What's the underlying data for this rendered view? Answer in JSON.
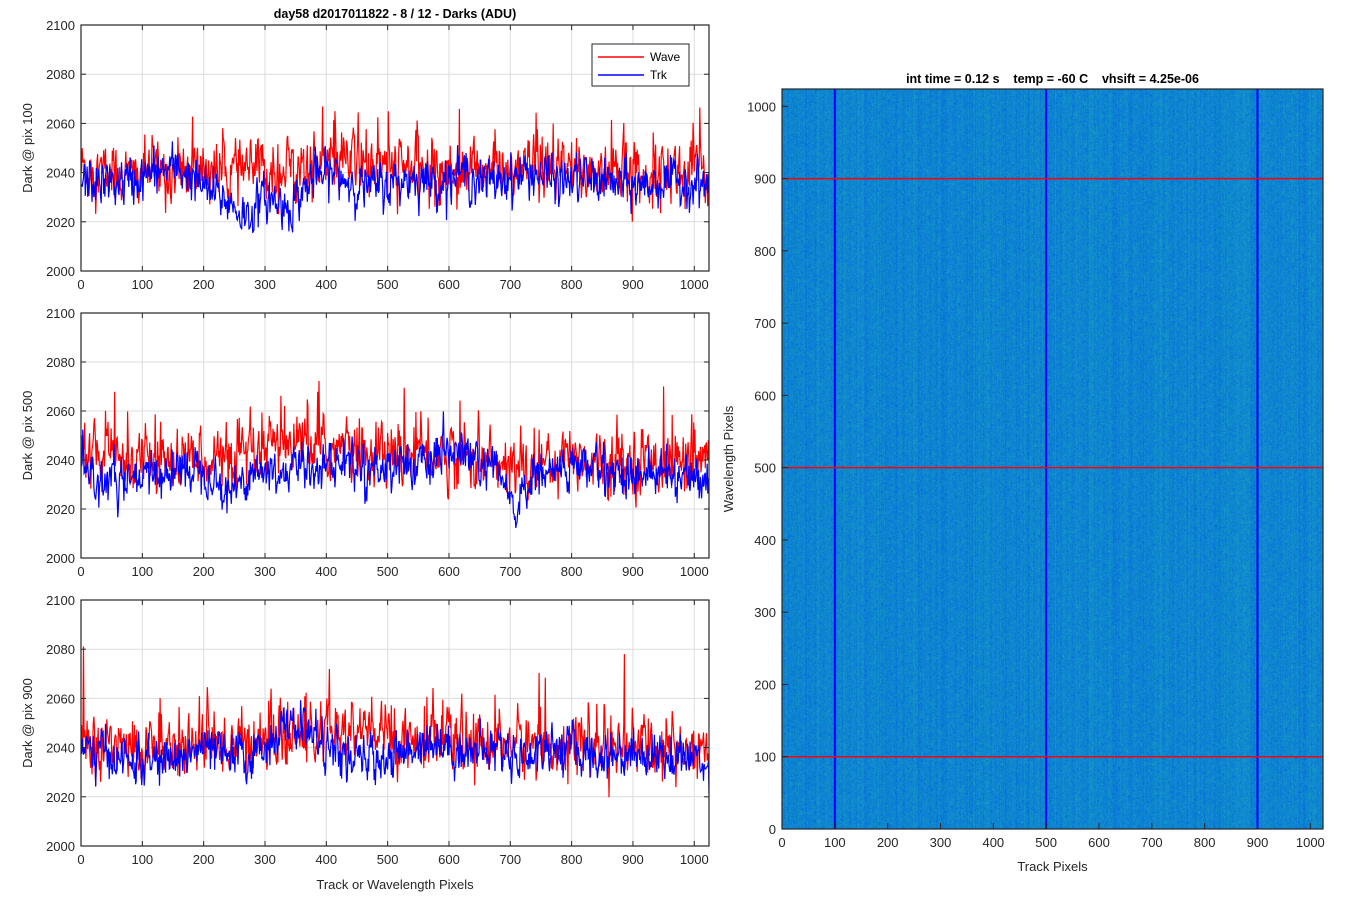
{
  "colors": {
    "wave": "#ff0000",
    "trk": "#0000ff",
    "grid": "#dcdcdc",
    "axis": "#262626"
  },
  "chart_data": [
    {
      "type": "line",
      "title": "day58 d2017011822 - 8 / 12 - Darks (ADU)",
      "ylabel": "Dark @ pix 100",
      "xlabel": "",
      "xlim": [
        0,
        1024
      ],
      "ylim": [
        2000,
        2100
      ],
      "xticks": [
        0,
        100,
        200,
        300,
        400,
        500,
        600,
        700,
        800,
        900,
        1000
      ],
      "yticks": [
        2000,
        2020,
        2040,
        2060,
        2080,
        2100
      ],
      "grid": true,
      "legend": "top-right",
      "series": [
        {
          "name": "Wave",
          "color": "#ff0000",
          "x": [
            0,
            40,
            80,
            120,
            160,
            200,
            240,
            270,
            300,
            340,
            380,
            410,
            440,
            470,
            500,
            540,
            580,
            620,
            660,
            700,
            740,
            780,
            820,
            860,
            900,
            940,
            980,
            1024
          ],
          "values": [
            2042,
            2040,
            2038,
            2041,
            2039,
            2042,
            2040,
            2041,
            2041,
            2042,
            2043,
            2044,
            2045,
            2043,
            2042,
            2042,
            2041,
            2041,
            2042,
            2040,
            2041,
            2041,
            2040,
            2041,
            2040,
            2041,
            2040,
            2040
          ]
        },
        {
          "name": "Trk",
          "color": "#0000ff",
          "x": [
            0,
            40,
            80,
            120,
            160,
            200,
            240,
            270,
            300,
            340,
            380,
            410,
            440,
            470,
            500,
            540,
            580,
            620,
            660,
            700,
            740,
            780,
            820,
            860,
            900,
            940,
            980,
            1024
          ],
          "values": [
            2036,
            2036,
            2036,
            2040,
            2042,
            2034,
            2028,
            2022,
            2030,
            2026,
            2038,
            2040,
            2036,
            2034,
            2035,
            2038,
            2036,
            2040,
            2036,
            2038,
            2040,
            2036,
            2038,
            2036,
            2034,
            2036,
            2036,
            2035
          ]
        }
      ]
    },
    {
      "type": "line",
      "title": "",
      "ylabel": "Dark @ pix 500",
      "xlabel": "",
      "xlim": [
        0,
        1024
      ],
      "ylim": [
        2000,
        2100
      ],
      "xticks": [
        0,
        100,
        200,
        300,
        400,
        500,
        600,
        700,
        800,
        900,
        1000
      ],
      "yticks": [
        2000,
        2020,
        2040,
        2060,
        2080,
        2100
      ],
      "grid": true,
      "series": [
        {
          "name": "Wave",
          "color": "#ff0000",
          "x": [
            0,
            40,
            80,
            120,
            160,
            200,
            240,
            280,
            320,
            360,
            400,
            440,
            480,
            520,
            560,
            600,
            640,
            680,
            720,
            760,
            800,
            840,
            880,
            920,
            960,
            1000,
            1024
          ],
          "values": [
            2040,
            2042,
            2041,
            2040,
            2040,
            2042,
            2040,
            2040,
            2046,
            2046,
            2045,
            2044,
            2042,
            2042,
            2043,
            2042,
            2041,
            2038,
            2036,
            2040,
            2042,
            2040,
            2040,
            2040,
            2040,
            2040,
            2040
          ]
        },
        {
          "name": "Trk",
          "color": "#0000ff",
          "x": [
            0,
            40,
            80,
            120,
            160,
            200,
            240,
            280,
            320,
            360,
            400,
            440,
            480,
            520,
            560,
            600,
            640,
            680,
            710,
            740,
            780,
            820,
            860,
            900,
            940,
            980,
            1024
          ],
          "values": [
            2034,
            2032,
            2030,
            2034,
            2036,
            2038,
            2026,
            2036,
            2034,
            2038,
            2038,
            2040,
            2036,
            2040,
            2036,
            2044,
            2040,
            2034,
            2020,
            2034,
            2036,
            2038,
            2036,
            2034,
            2034,
            2034,
            2032
          ]
        }
      ]
    },
    {
      "type": "line",
      "title": "",
      "ylabel": "Dark @ pix 900",
      "xlabel": "Track or Wavelength Pixels",
      "xlim": [
        0,
        1024
      ],
      "ylim": [
        2000,
        2100
      ],
      "xticks": [
        0,
        100,
        200,
        300,
        400,
        500,
        600,
        700,
        800,
        900,
        1000
      ],
      "yticks": [
        2000,
        2020,
        2040,
        2060,
        2080,
        2100
      ],
      "grid": true,
      "series": [
        {
          "name": "Wave",
          "color": "#ff0000",
          "x": [
            0,
            40,
            80,
            120,
            160,
            200,
            240,
            280,
            320,
            360,
            400,
            440,
            480,
            520,
            560,
            600,
            640,
            680,
            720,
            760,
            800,
            840,
            880,
            920,
            960,
            1000,
            1024
          ],
          "values": [
            2042,
            2040,
            2040,
            2040,
            2042,
            2040,
            2042,
            2042,
            2044,
            2044,
            2046,
            2046,
            2046,
            2044,
            2043,
            2042,
            2042,
            2042,
            2042,
            2040,
            2042,
            2040,
            2040,
            2040,
            2040,
            2040,
            2040
          ]
        },
        {
          "name": "Trk",
          "color": "#0000ff",
          "x": [
            0,
            40,
            80,
            120,
            160,
            200,
            240,
            280,
            320,
            360,
            400,
            440,
            480,
            520,
            560,
            600,
            640,
            680,
            720,
            760,
            800,
            840,
            880,
            920,
            960,
            1000,
            1024
          ],
          "values": [
            2038,
            2038,
            2034,
            2034,
            2036,
            2040,
            2036,
            2036,
            2046,
            2050,
            2040,
            2034,
            2036,
            2036,
            2044,
            2040,
            2038,
            2040,
            2036,
            2040,
            2040,
            2036,
            2038,
            2038,
            2036,
            2036,
            2034
          ]
        }
      ]
    },
    {
      "type": "heatmap",
      "title": "int time = 0.12 s    temp = -60 C    vhsift = 4.25e-06",
      "xlabel": "Track Pixels",
      "ylabel": "Wavelength Pixels",
      "xlim": [
        0,
        1024
      ],
      "ylim": [
        0,
        1024
      ],
      "xticks": [
        0,
        100,
        200,
        300,
        400,
        500,
        600,
        700,
        800,
        900,
        1000
      ],
      "yticks": [
        0,
        100,
        200,
        300,
        400,
        500,
        600,
        700,
        800,
        900,
        1000
      ],
      "colormap": "parula",
      "value_range": [
        2000,
        2100
      ],
      "mean_value": 2038,
      "vlines": {
        "x": [
          100,
          500,
          900
        ],
        "color": "#0000ff"
      },
      "hlines": {
        "y": [
          100,
          500,
          900
        ],
        "color": "#ff0000"
      }
    }
  ]
}
